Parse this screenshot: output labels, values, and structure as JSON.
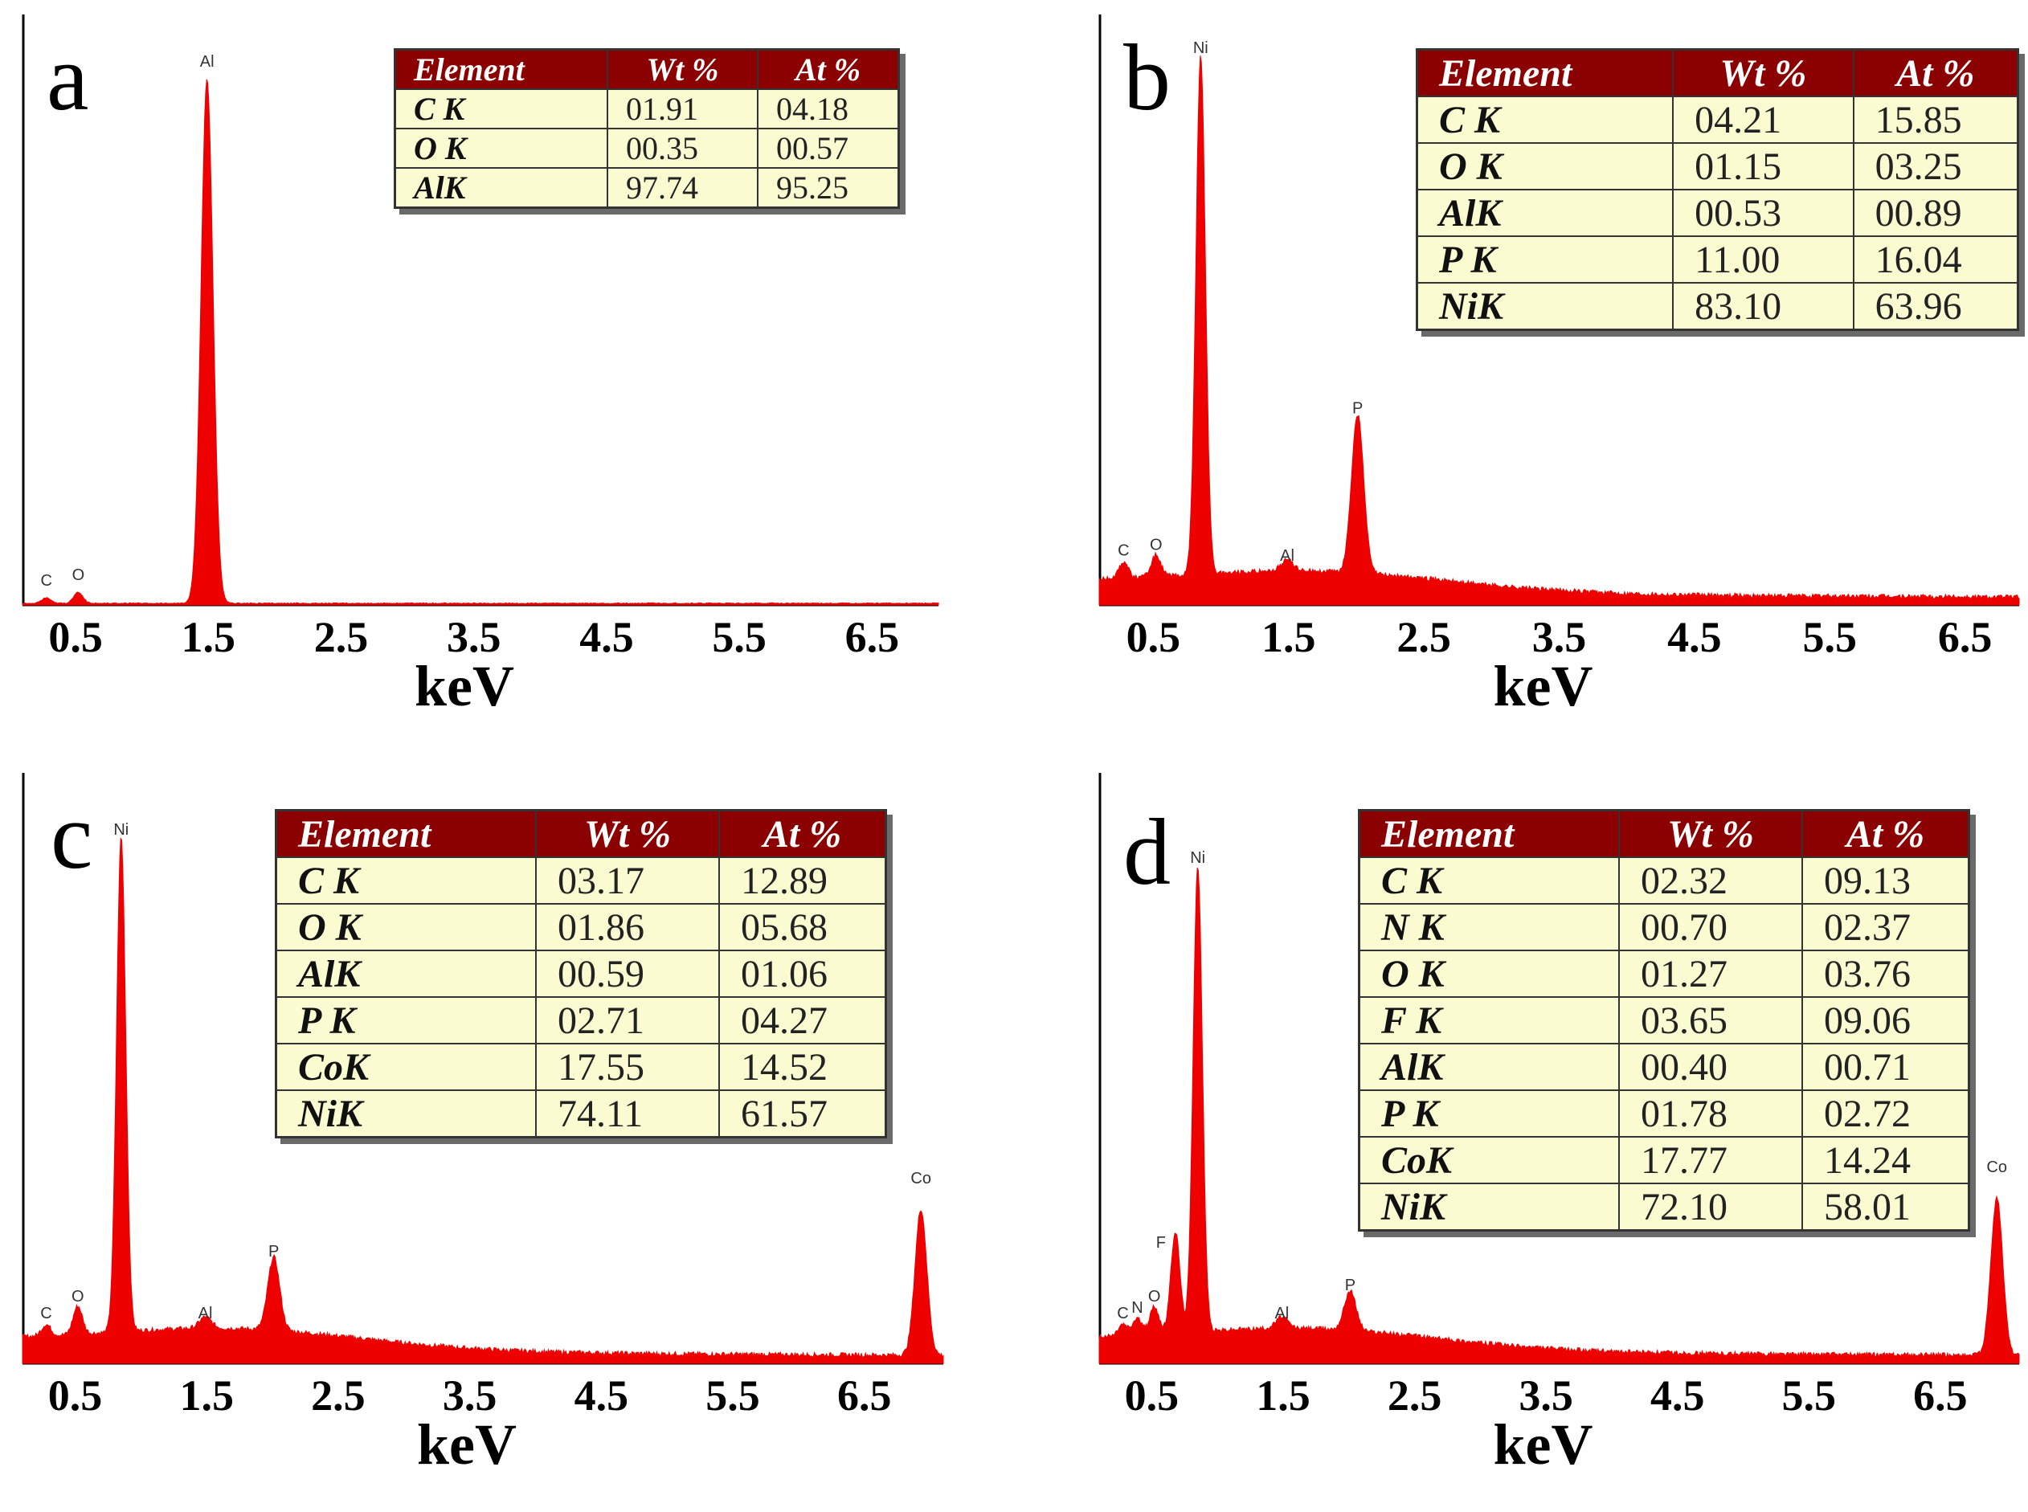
{
  "chart_data": [
    {
      "panel": "a",
      "type": "line",
      "xlabel": "keV",
      "xticks": [
        "0.5",
        "1.5",
        "2.5",
        "3.5",
        "4.5",
        "5.5",
        "6.5"
      ],
      "xlim": [
        0.1,
        7.0
      ],
      "peaks": [
        {
          "label": "C",
          "energy": 0.28,
          "height": 0.01
        },
        {
          "label": "O",
          "energy": 0.52,
          "height": 0.02
        },
        {
          "label": "Al",
          "energy": 1.49,
          "height": 0.96
        }
      ],
      "table": {
        "headers": [
          "Element",
          "Wt %",
          "At %"
        ],
        "rows": [
          [
            "C K",
            "01.91",
            "04.18"
          ],
          [
            "O K",
            "00.35",
            "00.57"
          ],
          [
            "AlK",
            "97.74",
            "95.25"
          ]
        ]
      }
    },
    {
      "panel": "b",
      "type": "line",
      "xlabel": "keV",
      "xticks": [
        "0.5",
        "1.5",
        "2.5",
        "3.5",
        "4.5",
        "5.5",
        "6.5"
      ],
      "xlim": [
        0.1,
        6.9
      ],
      "peaks": [
        {
          "label": "C",
          "energy": 0.28,
          "height": 0.03
        },
        {
          "label": "O",
          "energy": 0.52,
          "height": 0.04
        },
        {
          "label": "Ni",
          "energy": 0.85,
          "height": 0.95
        },
        {
          "label": "Al",
          "energy": 1.49,
          "height": 0.02
        },
        {
          "label": "P",
          "energy": 2.01,
          "height": 0.29
        }
      ],
      "table": {
        "headers": [
          "Element",
          "Wt %",
          "At %"
        ],
        "rows": [
          [
            "C K",
            "04.21",
            "15.85"
          ],
          [
            "O K",
            "01.15",
            "03.25"
          ],
          [
            "AlK",
            "00.53",
            "00.89"
          ],
          [
            "P K",
            "11.00",
            "16.04"
          ],
          [
            "NiK",
            "83.10",
            "63.96"
          ]
        ]
      }
    },
    {
      "panel": "c",
      "type": "line",
      "xlabel": "keV",
      "xticks": [
        "0.5",
        "1.5",
        "2.5",
        "3.5",
        "4.5",
        "5.5",
        "6.5"
      ],
      "xlim": [
        0.1,
        7.1
      ],
      "peaks": [
        {
          "label": "C",
          "energy": 0.28,
          "height": 0.02
        },
        {
          "label": "O",
          "energy": 0.52,
          "height": 0.05
        },
        {
          "label": "Ni",
          "energy": 0.85,
          "height": 0.88
        },
        {
          "label": "Al",
          "energy": 1.49,
          "height": 0.02
        },
        {
          "label": "P",
          "energy": 2.01,
          "height": 0.13
        },
        {
          "label": "Co",
          "energy": 6.93,
          "height": 0.26
        }
      ],
      "table": {
        "headers": [
          "Element",
          "Wt %",
          "At %"
        ],
        "rows": [
          [
            "C K",
            "03.17",
            "12.89"
          ],
          [
            "O K",
            "01.86",
            "05.68"
          ],
          [
            "AlK",
            "00.59",
            "01.06"
          ],
          [
            "P K",
            "02.71",
            "04.27"
          ],
          [
            "CoK",
            "17.55",
            "14.52"
          ],
          [
            "NiK",
            "74.11",
            "61.57"
          ]
        ]
      }
    },
    {
      "panel": "d",
      "type": "line",
      "xlabel": "keV",
      "xticks": [
        "0.5",
        "1.5",
        "2.5",
        "3.5",
        "4.5",
        "5.5",
        "6.5"
      ],
      "xlim": [
        0.1,
        7.1
      ],
      "peaks": [
        {
          "label": "C",
          "energy": 0.28,
          "height": 0.02
        },
        {
          "label": "N",
          "energy": 0.39,
          "height": 0.03
        },
        {
          "label": "O",
          "energy": 0.52,
          "height": 0.05
        },
        {
          "label": "F",
          "energy": 0.68,
          "height": 0.18
        },
        {
          "label": "Ni",
          "energy": 0.85,
          "height": 0.83
        },
        {
          "label": "Al",
          "energy": 1.49,
          "height": 0.02
        },
        {
          "label": "P",
          "energy": 2.01,
          "height": 0.07
        },
        {
          "label": "Co",
          "energy": 6.93,
          "height": 0.28
        }
      ],
      "table": {
        "headers": [
          "Element",
          "Wt %",
          "At %"
        ],
        "rows": [
          [
            "C K",
            "02.32",
            "09.13"
          ],
          [
            "N K",
            "00.70",
            "02.37"
          ],
          [
            "O K",
            "01.27",
            "03.76"
          ],
          [
            "F K",
            "03.65",
            "09.06"
          ],
          [
            "AlK",
            "00.40",
            "00.71"
          ],
          [
            "P K",
            "01.78",
            "02.72"
          ],
          [
            "CoK",
            "17.77",
            "14.24"
          ],
          [
            "NiK",
            "72.10",
            "58.01"
          ]
        ]
      }
    }
  ],
  "colors": {
    "spectrum": "#ee0000",
    "table_header": "#8b0000",
    "table_body": "#fbfbd2"
  }
}
